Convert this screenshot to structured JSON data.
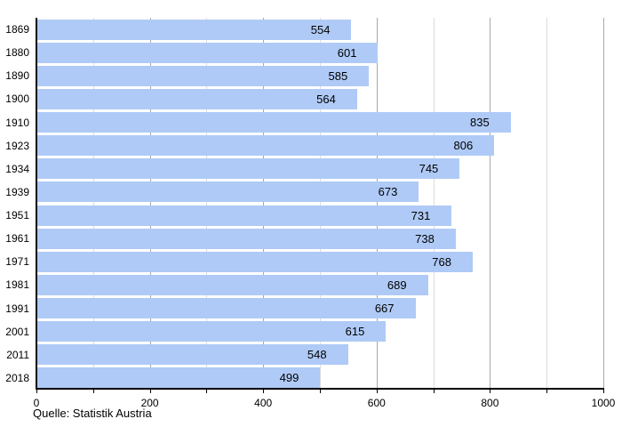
{
  "chart_data": {
    "type": "bar",
    "orientation": "horizontal",
    "title": "",
    "xlabel": "",
    "ylabel": "",
    "categories": [
      "1869",
      "1880",
      "1890",
      "1900",
      "1910",
      "1923",
      "1934",
      "1939",
      "1951",
      "1961",
      "1971",
      "1981",
      "1991",
      "2001",
      "2011",
      "2018"
    ],
    "values": [
      554,
      601,
      585,
      564,
      835,
      806,
      745,
      673,
      731,
      738,
      768,
      689,
      667,
      615,
      548,
      499
    ],
    "xlim": [
      0,
      1000
    ],
    "x_tick_labels": [
      "0",
      "200",
      "400",
      "600",
      "800",
      "1000"
    ],
    "x_tick_values": [
      0,
      200,
      400,
      600,
      800,
      1000
    ],
    "x_minor_tick_step": 100,
    "grid": "vertical minor every 100, major every 200",
    "legend": "none",
    "bar_color": "#AFCAF6",
    "grid_minor_color": "#DCDCDC",
    "grid_major_color": "#A8A8A8",
    "axis_color": "#000000",
    "value_label_color": "#000000"
  },
  "footer": {
    "source": "Quelle: Statistik Austria"
  }
}
